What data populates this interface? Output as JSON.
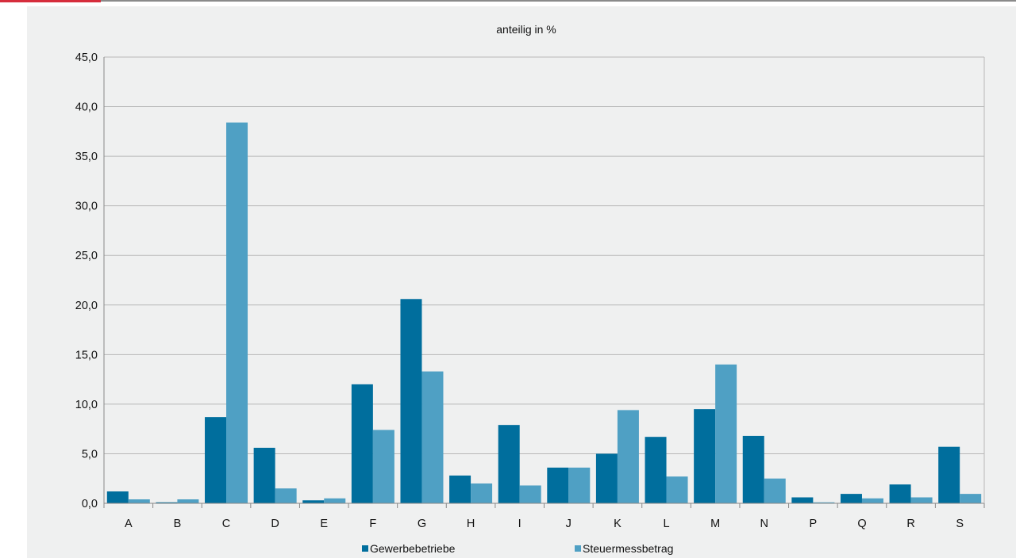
{
  "chart_data": {
    "type": "bar",
    "title": "anteilig in %",
    "xlabel": "",
    "ylabel": "",
    "categories": [
      "A",
      "B",
      "C",
      "D",
      "E",
      "F",
      "G",
      "H",
      "I",
      "J",
      "K",
      "L",
      "M",
      "N",
      "P",
      "Q",
      "R",
      "S"
    ],
    "series": [
      {
        "name": "Gewerbebetriebe",
        "color": "#006e9d",
        "values": [
          1.2,
          0.1,
          8.7,
          5.6,
          0.3,
          12.0,
          20.6,
          2.8,
          7.9,
          3.6,
          5.0,
          6.7,
          9.5,
          6.8,
          0.6,
          0.95,
          1.9,
          5.7
        ]
      },
      {
        "name": "Steuermessbetrag",
        "color": "#4fa0c4",
        "values": [
          0.4,
          0.4,
          38.4,
          1.5,
          0.5,
          7.4,
          13.3,
          2.0,
          1.8,
          3.6,
          9.4,
          2.7,
          14.0,
          2.5,
          0.1,
          0.5,
          0.6,
          0.95
        ]
      }
    ],
    "ylim": [
      0,
      45
    ],
    "yticks": [
      "0,0",
      "5,0",
      "10,0",
      "15,0",
      "20,0",
      "25,0",
      "30,0",
      "35,0",
      "40,0",
      "45,0"
    ],
    "grid": true,
    "legend_position": "bottom"
  },
  "colors": {
    "accent": "#d62d3c",
    "panel_background": "#eff0f0",
    "gridline": "#b8b8b8"
  }
}
